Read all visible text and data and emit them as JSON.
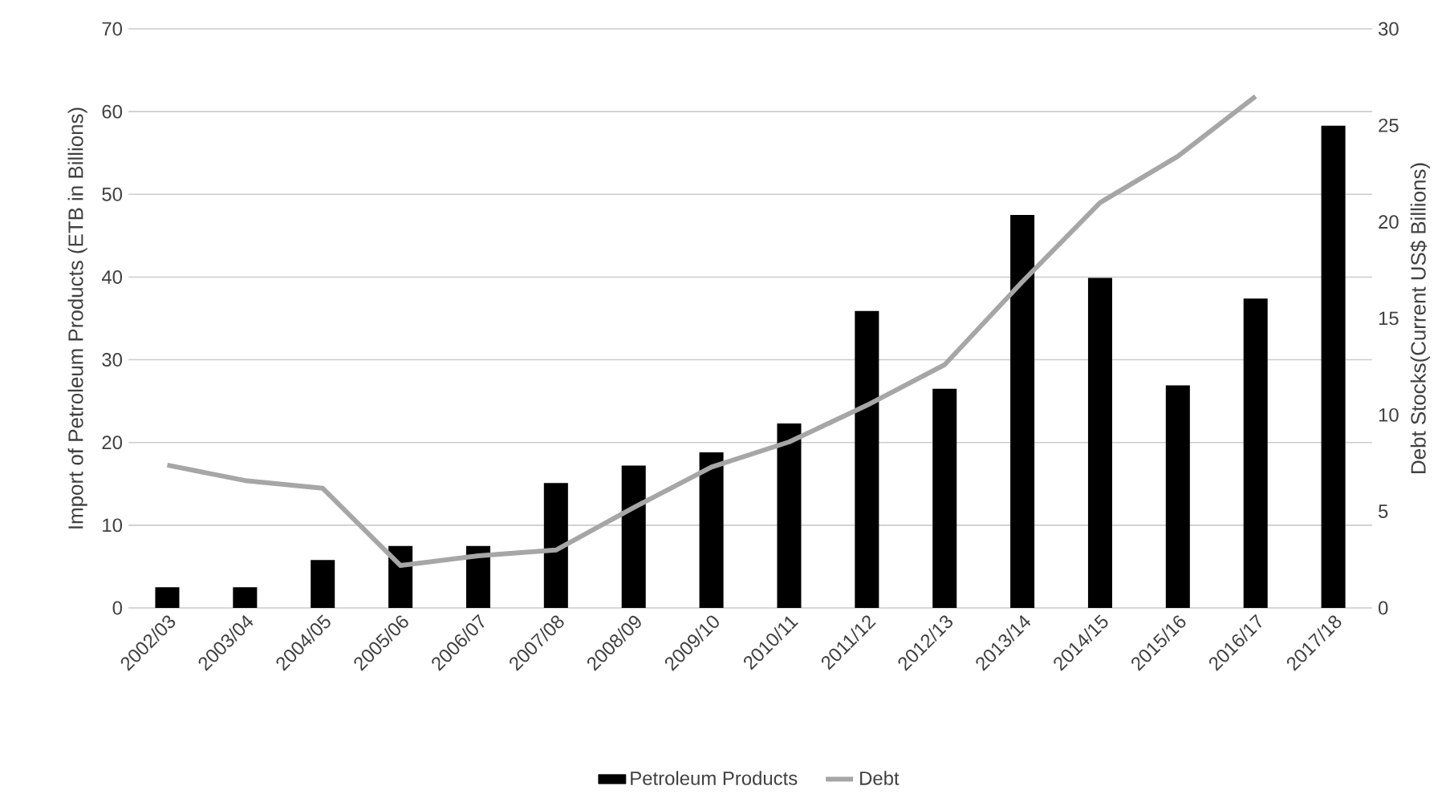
{
  "chart_data": {
    "type": "bar",
    "categories": [
      "2002/03",
      "2003/04",
      "2004/05",
      "2005/06",
      "2006/07",
      "2007/08",
      "2008/09",
      "2009/10",
      "2010/11",
      "2011/12",
      "2012/13",
      "2013/14",
      "2014/15",
      "2015/16",
      "2016/17",
      "2017/18"
    ],
    "series": [
      {
        "name": "Petroleum Products",
        "color": "#000000",
        "values": [
          2.5,
          2.5,
          5.8,
          7.5,
          7.5,
          15.1,
          17.2,
          18.8,
          22.3,
          35.9,
          26.5,
          47.5,
          39.9,
          26.9,
          37.4,
          58.3
        ]
      },
      {
        "name": "Debt",
        "type": "line",
        "axis": "y2",
        "color": "#a6a6a6",
        "values": [
          7.4,
          6.6,
          6.2,
          2.2,
          2.7,
          3.0,
          5.2,
          7.3,
          8.6,
          10.5,
          12.6,
          16.9,
          21.0,
          23.4,
          26.5,
          null
        ]
      }
    ],
    "ylabel": "Import of Petroleum Products (ETB in Billions)",
    "y2label": "Debt Stocks(Current US$ Billions)",
    "ylim": [
      0,
      70
    ],
    "yticks": [
      0,
      10,
      20,
      30,
      40,
      50,
      60,
      70
    ],
    "y2lim": [
      0,
      30
    ],
    "y2ticks": [
      0,
      5,
      10,
      15,
      20,
      25,
      30
    ],
    "grid": "y",
    "legend": "bottom"
  }
}
